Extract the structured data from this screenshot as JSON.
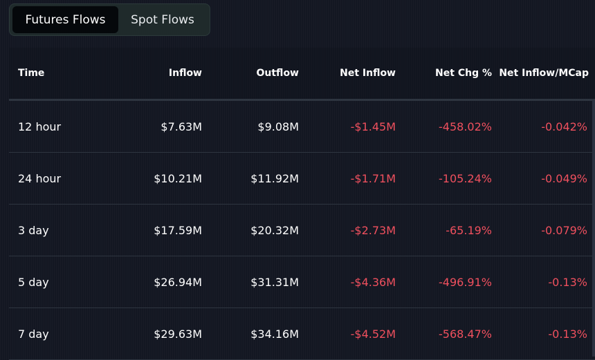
{
  "tabs": [
    {
      "label": "Futures Flows",
      "active": true
    },
    {
      "label": "Spot Flows",
      "active": false
    }
  ],
  "table": {
    "headers": [
      "Time",
      "Inflow",
      "Outflow",
      "Net Inflow",
      "Net Chg %",
      "Net Inflow/MCap"
    ],
    "rows": [
      {
        "time": "12 hour",
        "inflow": "$7.63M",
        "outflow": "$9.08M",
        "net_inflow": "-$1.45M",
        "net_chg": "-458.02%",
        "net_mcap": "-0.042%"
      },
      {
        "time": "24 hour",
        "inflow": "$10.21M",
        "outflow": "$11.92M",
        "net_inflow": "-$1.71M",
        "net_chg": "-105.24%",
        "net_mcap": "-0.049%"
      },
      {
        "time": "3 day",
        "inflow": "$17.59M",
        "outflow": "$20.32M",
        "net_inflow": "-$2.73M",
        "net_chg": "-65.19%",
        "net_mcap": "-0.079%"
      },
      {
        "time": "5 day",
        "inflow": "$26.94M",
        "outflow": "$31.31M",
        "net_inflow": "-$4.36M",
        "net_chg": "-496.91%",
        "net_mcap": "-0.13%"
      },
      {
        "time": "7 day",
        "inflow": "$29.63M",
        "outflow": "$34.16M",
        "net_inflow": "-$4.52M",
        "net_chg": "-568.47%",
        "net_mcap": "-0.13%"
      }
    ]
  },
  "colors": {
    "negative": "#f0505e",
    "background": "#131722",
    "active_tab": "#05080b"
  }
}
